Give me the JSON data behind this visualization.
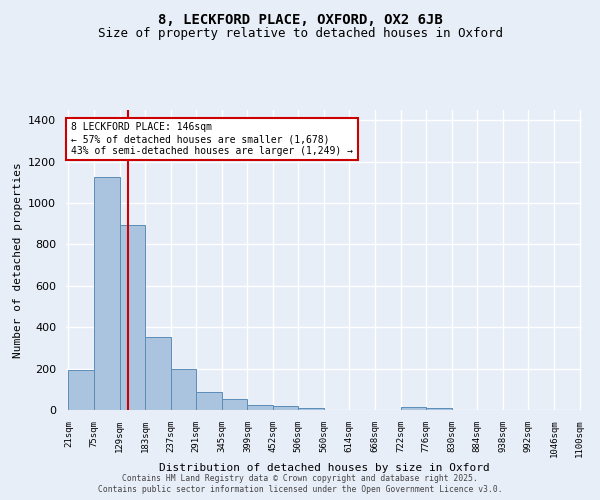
{
  "title1": "8, LECKFORD PLACE, OXFORD, OX2 6JB",
  "title2": "Size of property relative to detached houses in Oxford",
  "xlabel": "Distribution of detached houses by size in Oxford",
  "ylabel": "Number of detached properties",
  "bins": [
    21,
    75,
    129,
    183,
    237,
    291,
    345,
    399,
    452,
    506,
    560,
    614,
    668,
    722,
    776,
    830,
    884,
    938,
    992,
    1046,
    1100
  ],
  "counts": [
    193,
    1128,
    893,
    352,
    197,
    87,
    52,
    22,
    18,
    11,
    0,
    0,
    0,
    14,
    10,
    0,
    0,
    0,
    0,
    0
  ],
  "bar_color": "#aac4e0",
  "bar_edge_color": "#5b8db8",
  "bg_color": "#e8eef8",
  "grid_color": "#ffffff",
  "vline_x": 146,
  "vline_color": "#cc0000",
  "annotation_text": "8 LECKFORD PLACE: 146sqm\n← 57% of detached houses are smaller (1,678)\n43% of semi-detached houses are larger (1,249) →",
  "annotation_box_color": "#cc0000",
  "annotation_bg": "#ffffff",
  "footer1": "Contains HM Land Registry data © Crown copyright and database right 2025.",
  "footer2": "Contains public sector information licensed under the Open Government Licence v3.0.",
  "ylim": [
    0,
    1450
  ],
  "title1_fontsize": 10,
  "title2_fontsize": 9,
  "xlabel_fontsize": 8,
  "ylabel_fontsize": 8,
  "tick_fontsize": 6.5,
  "annot_fontsize": 7,
  "footer_fontsize": 5.8
}
